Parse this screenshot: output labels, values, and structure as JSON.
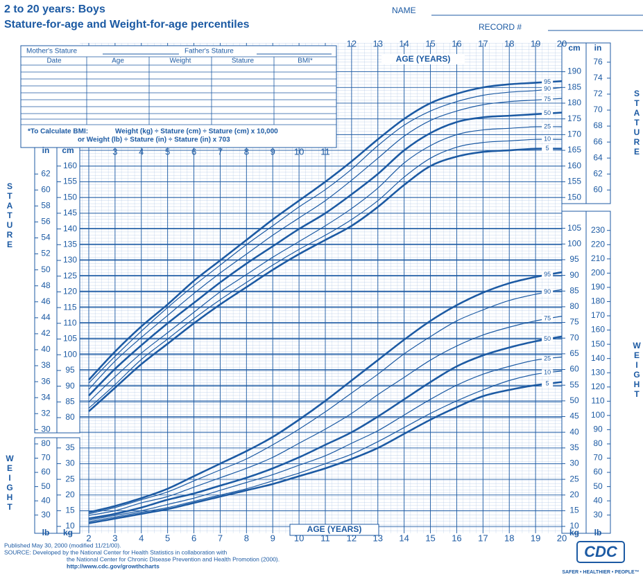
{
  "header": {
    "title": "2 to 20 years: Boys",
    "subtitle": "Stature-for-age and Weight-for-age percentiles",
    "name_label": "NAME",
    "record_label": "RECORD #"
  },
  "record_table": {
    "mother": "Mother's Stature",
    "father": "Father's Stature",
    "columns": [
      "Date",
      "Age",
      "Weight",
      "Stature",
      "BMI*"
    ],
    "bmi_label": "*To Calculate BMI:",
    "bmi_line1": "Weight (kg) ÷ Stature (cm) ÷ Stature (cm) x 10,000",
    "bmi_line2": "or Weight (lb) ÷ Stature (in) ÷ Stature (in) x 703"
  },
  "footer": {
    "published": "Published May 30, 2000 (modified 11/21/00).",
    "source1": "SOURCE: Developed by the National Center for Health Statistics in collaboration with",
    "source2": "the National Center for Chronic Disease Prevention and Health Promotion (2000).",
    "url": "http://www.cdc.gov/growthcharts"
  },
  "logo": {
    "mark": "CDC",
    "tagline": "SAFER • HEALTHIER • PEOPLE™"
  },
  "chart_data": [
    {
      "type": "line",
      "x_label": "AGE (YEARS)",
      "y_label": "STATURE",
      "y_unit": "cm",
      "y2_unit": "in",
      "x": [
        2,
        3,
        4,
        5,
        6,
        7,
        8,
        9,
        10,
        11,
        12,
        13,
        14,
        15,
        16,
        17,
        18,
        19,
        20
      ],
      "xlim": [
        2,
        20
      ],
      "xticks": [
        2,
        3,
        4,
        5,
        6,
        7,
        8,
        9,
        10,
        11,
        12,
        13,
        14,
        15,
        16,
        17,
        18,
        19,
        20
      ],
      "ylim": [
        75,
        199
      ],
      "yticks": [
        80,
        85,
        90,
        95,
        100,
        105,
        110,
        115,
        120,
        125,
        130,
        135,
        140,
        145,
        150,
        155,
        160
      ],
      "yticks_right": [
        150,
        155,
        160,
        165,
        170,
        175,
        180,
        185,
        190
      ],
      "y2lim": [
        29.53,
        78.35
      ],
      "y2ticks": [
        30,
        32,
        34,
        36,
        38,
        40,
        42,
        44,
        46,
        48,
        50,
        52,
        54,
        56,
        58,
        60,
        62
      ],
      "y2ticks_right": [
        60,
        62,
        64,
        66,
        68,
        70,
        72,
        74,
        76
      ],
      "grid": true,
      "series": [
        {
          "name": "95",
          "color": "#1c5aa3",
          "values": [
            92,
            101,
            109,
            116,
            123.5,
            130,
            136.5,
            143,
            149,
            155,
            161.5,
            168.5,
            175,
            180,
            183,
            185,
            186,
            186.5,
            187
          ]
        },
        {
          "name": "90",
          "color": "#1c5aa3",
          "values": [
            91,
            99.5,
            107.5,
            115,
            122,
            128.5,
            135,
            141,
            147,
            152.5,
            159,
            166.5,
            173,
            177.5,
            180.5,
            182.5,
            183.5,
            184,
            185
          ]
        },
        {
          "name": "75",
          "color": "#1c5aa3",
          "values": [
            89,
            98,
            105.5,
            112.5,
            119.5,
            126,
            132,
            138,
            143.5,
            149,
            155.5,
            162.5,
            169.5,
            174.5,
            177.5,
            179.5,
            180.5,
            181,
            181.5
          ]
        },
        {
          "name": "50",
          "color": "#1c5aa3",
          "values": [
            87,
            95.5,
            103,
            110,
            116.5,
            123,
            129,
            134.5,
            140,
            145,
            151,
            157.5,
            165,
            170.5,
            174,
            175.5,
            176,
            176.5,
            177
          ]
        },
        {
          "name": "25",
          "color": "#1c5aa3",
          "values": [
            85,
            93,
            100.5,
            107,
            113.5,
            120,
            125.5,
            131,
            136,
            141,
            146.5,
            153,
            161,
            166.5,
            170,
            171.5,
            172,
            172.5,
            172.5
          ]
        },
        {
          "name": "10",
          "color": "#1c5aa3",
          "values": [
            83,
            90.5,
            98.5,
            105,
            111.5,
            117.5,
            123,
            128.5,
            133.5,
            138,
            143,
            149,
            156.5,
            162.5,
            166,
            167.5,
            168,
            168.5,
            168.5
          ]
        },
        {
          "name": "5",
          "color": "#1c5aa3",
          "values": [
            82,
            89.5,
            97,
            103.5,
            110,
            116,
            121.5,
            127,
            132,
            136.5,
            141,
            147,
            154,
            160,
            163,
            164.5,
            165,
            165.5,
            165.5
          ]
        }
      ]
    },
    {
      "type": "line",
      "x_label": "AGE (YEARS)",
      "y_label": "WEIGHT",
      "y_unit": "kg",
      "y2_unit": "lb",
      "x": [
        2,
        3,
        4,
        5,
        6,
        7,
        8,
        9,
        10,
        11,
        12,
        13,
        14,
        15,
        16,
        17,
        18,
        19,
        20
      ],
      "xlim": [
        2,
        20
      ],
      "xticks": [
        2,
        3,
        4,
        5,
        6,
        7,
        8,
        9,
        10,
        11,
        12,
        13,
        14,
        15,
        16,
        17,
        18,
        19,
        20
      ],
      "ylim": [
        8,
        110
      ],
      "yticks": [
        10,
        15,
        20,
        25,
        30,
        35
      ],
      "yticks_right": [
        10,
        15,
        20,
        25,
        30,
        35,
        40,
        45,
        50,
        55,
        60,
        65,
        70,
        75,
        80,
        85,
        90,
        95,
        100,
        105
      ],
      "y2lim": [
        17.64,
        242.51
      ],
      "y2ticks": [
        30,
        40,
        50,
        60,
        70,
        80
      ],
      "y2ticks_right": [
        30,
        40,
        50,
        60,
        70,
        80,
        90,
        100,
        110,
        120,
        130,
        140,
        150,
        160,
        170,
        180,
        190,
        200,
        210,
        220,
        230
      ],
      "grid": true,
      "series": [
        {
          "name": "95",
          "color": "#1c5aa3",
          "values": [
            14.5,
            16.5,
            19,
            22,
            26,
            30,
            34,
            38.5,
            44,
            50,
            56.5,
            63,
            69.5,
            75.5,
            80.5,
            84.5,
            87.5,
            89.5,
            91
          ]
        },
        {
          "name": "90",
          "color": "#1c5aa3",
          "values": [
            14,
            16,
            18.5,
            21,
            24.5,
            28,
            31.5,
            36,
            41,
            46.5,
            52.5,
            58.5,
            65,
            70.5,
            75.5,
            79,
            82,
            84,
            85.5
          ]
        },
        {
          "name": "75",
          "color": "#1c5aa3",
          "values": [
            13.5,
            15,
            17.5,
            19.5,
            22.5,
            25.5,
            28.5,
            32,
            36.5,
            41,
            46,
            52,
            57.5,
            63,
            67.5,
            71,
            73.5,
            75.5,
            77
          ]
        },
        {
          "name": "50",
          "color": "#1c5aa3",
          "values": [
            12.5,
            14,
            16,
            18.5,
            20.5,
            23,
            25.5,
            28.5,
            32,
            36,
            40,
            45,
            50.5,
            56,
            61,
            64.5,
            67,
            69,
            70.5
          ]
        },
        {
          "name": "25",
          "color": "#1c5aa3",
          "values": [
            12,
            13.5,
            15,
            17,
            19,
            21.5,
            24,
            26.5,
            29.5,
            32.5,
            36.5,
            40.5,
            45.5,
            50.5,
            55,
            58.5,
            61,
            63,
            64
          ]
        },
        {
          "name": "10",
          "color": "#1c5aa3",
          "values": [
            11.5,
            13,
            14.5,
            16,
            18,
            20,
            22,
            24.5,
            27,
            30,
            33,
            37,
            41.5,
            46,
            50,
            53.5,
            56.5,
            58.5,
            59.5
          ]
        },
        {
          "name": "5",
          "color": "#1c5aa3",
          "values": [
            11,
            12.5,
            14,
            15.5,
            17.5,
            19.5,
            21.5,
            23.5,
            26,
            28.5,
            31.5,
            35,
            39.5,
            44,
            48,
            51.5,
            53.5,
            55,
            56
          ]
        }
      ]
    }
  ]
}
